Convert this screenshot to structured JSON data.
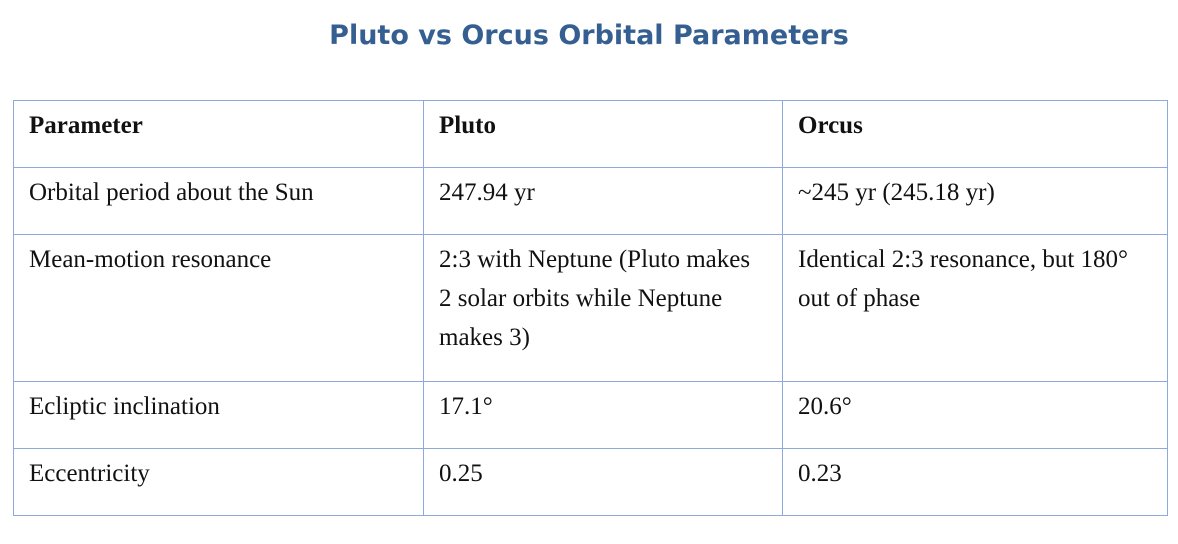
{
  "title": "Pluto vs Orcus Orbital Parameters",
  "table": {
    "header": [
      "Parameter",
      "Pluto",
      "Orcus"
    ],
    "rows": [
      [
        "Orbital period about the Sun",
        "247.94 yr",
        "~245 yr (245.18 yr)"
      ],
      [
        "Mean-motion resonance",
        "2:3 with Neptune (Pluto makes 2 solar orbits while Neptune makes 3)",
        "Identical 2:3 resonance, but 180° out of phase"
      ],
      [
        "Ecliptic inclination",
        "17.1°",
        "20.6°"
      ],
      [
        "Eccentricity",
        "0.25",
        "0.23"
      ]
    ]
  }
}
